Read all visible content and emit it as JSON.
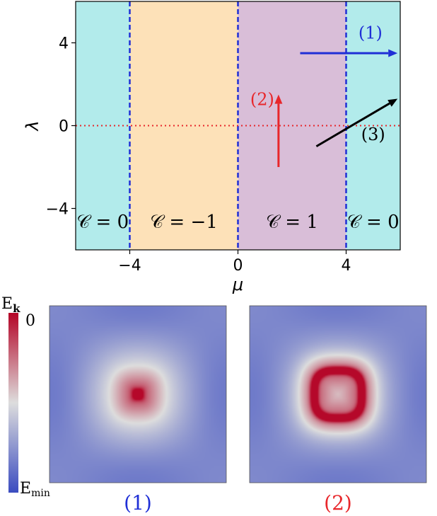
{
  "colors": {
    "trivial": "#b2ebeb",
    "chern_minus_one": "#fde1b8",
    "chern_one": "#d9bed8",
    "boundary": "#1f2fd6",
    "lambda_zero_line": "#e8272b",
    "arrow1": "#1f2fd6",
    "arrow2": "#e8272b",
    "arrow3": "#000000",
    "cmap_low": "#3b4cc0",
    "cmap_mid": "#dddddd",
    "cmap_high": "#b40426"
  },
  "chart_data": [
    {
      "type": "phase-diagram",
      "xlabel": "μ",
      "ylabel": "λ",
      "xlim": [
        -6,
        6
      ],
      "ylim": [
        -6,
        6
      ],
      "xticks": [
        -4,
        0,
        4
      ],
      "xtick_labels": [
        "−4",
        "0",
        "4"
      ],
      "yticks": [
        -4,
        0,
        4
      ],
      "ytick_labels": [
        "−4",
        "0",
        "4"
      ],
      "regions": [
        {
          "x0": -6,
          "x1": -4,
          "label": "𝒞 = 0",
          "color_key": "trivial"
        },
        {
          "x0": -4,
          "x1": 0,
          "label": "𝒞 = −1",
          "color_key": "chern_minus_one"
        },
        {
          "x0": 0,
          "x1": 4,
          "label": "𝒞 = 1",
          "color_key": "chern_one"
        },
        {
          "x0": 4,
          "x1": 6,
          "label": "𝒞 = 0",
          "color_key": "trivial"
        }
      ],
      "region_label_y": -4.6,
      "boundaries": [
        -4,
        0,
        4
      ],
      "hline": 0,
      "arrows": [
        {
          "label": "(1)",
          "x0": 2.3,
          "y0": 3.5,
          "x1": 5.9,
          "y1": 3.5,
          "color_key": "arrow1",
          "label_x": 4.9,
          "label_y": 4.2
        },
        {
          "label": "(2)",
          "x0": 1.5,
          "y0": -2.0,
          "x1": 1.5,
          "y1": 1.5,
          "color_key": "arrow2",
          "label_x": 0.9,
          "label_y": 1.0
        },
        {
          "label": "(3)",
          "x0": 2.9,
          "y0": -1.0,
          "x1": 5.9,
          "y1": 1.3,
          "color_key": "arrow3",
          "label_x": 5.0,
          "label_y": -0.7
        }
      ]
    },
    {
      "type": "heatmap",
      "caption": "(1)",
      "caption_color": "#1f2fd6",
      "ring_radius": 0,
      "ring_width": 0.06,
      "colorbar_top": "0",
      "colorbar_bottom": "E_min",
      "colorbar_title": "E_k"
    },
    {
      "type": "heatmap",
      "caption": "(2)",
      "caption_color": "#e8272b",
      "ring_radius": 0.27,
      "ring_width": 0.045
    }
  ]
}
